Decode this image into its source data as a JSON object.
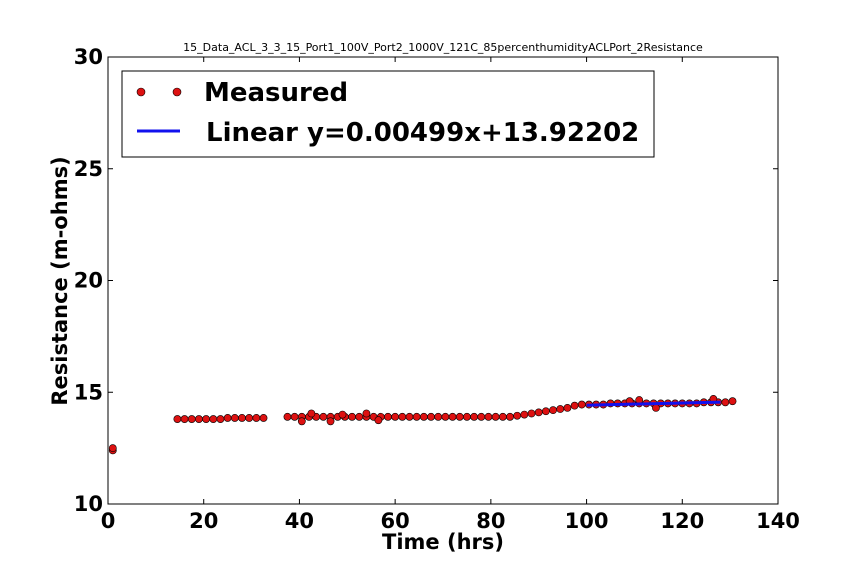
{
  "chart_data": {
    "type": "scatter",
    "title": "15_Data_ACL_3_3_15_Port1_100V_Port2_1000V_121C_85percenthumidityACLPort_2Resistance",
    "xlabel": "Time (hrs)",
    "ylabel": "Resistance (m-ohms)",
    "xlim": [
      0,
      140
    ],
    "ylim": [
      10,
      30
    ],
    "xticks": [
      "0",
      "20",
      "40",
      "60",
      "80",
      "100",
      "120",
      "140"
    ],
    "yticks": [
      "10",
      "15",
      "20",
      "25",
      "30"
    ],
    "legend_position": "top-left",
    "grid": false,
    "series": [
      {
        "name": "Measured",
        "kind": "points",
        "color": "#dd1111",
        "x": [
          1,
          1,
          14.5,
          16,
          17.5,
          19,
          20.5,
          22,
          23.5,
          25,
          26.5,
          28,
          29.5,
          31,
          32.5,
          37.5,
          39,
          40.5,
          42,
          43.5,
          45,
          46.5,
          48,
          49.5,
          51,
          52.5,
          54,
          55.5,
          57,
          58.5,
          60,
          61.5,
          63,
          64.5,
          66,
          67.5,
          69,
          70.5,
          72,
          73.5,
          75,
          76.5,
          78,
          79.5,
          81,
          82.5,
          84,
          85.5,
          87,
          88.5,
          90,
          91.5,
          93,
          94.5,
          96,
          97.5,
          99,
          100.5,
          102,
          103.5,
          105,
          106.5,
          108,
          109.5,
          111,
          112.5,
          114,
          115.5,
          117,
          118.5,
          120,
          121.5,
          123,
          124.5,
          126,
          127.5,
          129,
          130.5,
          40.5,
          42.5,
          46.5,
          49,
          54,
          56.5,
          109,
          111,
          114.5,
          126.5
        ],
        "y": [
          12.4,
          12.5,
          13.8,
          13.8,
          13.8,
          13.8,
          13.8,
          13.8,
          13.8,
          13.85,
          13.85,
          13.85,
          13.85,
          13.85,
          13.85,
          13.9,
          13.9,
          13.9,
          13.9,
          13.9,
          13.9,
          13.9,
          13.9,
          13.9,
          13.9,
          13.9,
          13.9,
          13.9,
          13.9,
          13.9,
          13.9,
          13.9,
          13.9,
          13.9,
          13.9,
          13.9,
          13.9,
          13.9,
          13.9,
          13.9,
          13.9,
          13.9,
          13.9,
          13.9,
          13.9,
          13.9,
          13.9,
          13.95,
          14.0,
          14.05,
          14.1,
          14.15,
          14.2,
          14.25,
          14.3,
          14.4,
          14.45,
          14.45,
          14.45,
          14.45,
          14.5,
          14.5,
          14.5,
          14.5,
          14.5,
          14.5,
          14.5,
          14.5,
          14.5,
          14.5,
          14.5,
          14.5,
          14.5,
          14.55,
          14.55,
          14.55,
          14.55,
          14.6,
          13.7,
          14.05,
          13.7,
          14.0,
          14.05,
          13.75,
          14.6,
          14.65,
          14.3,
          14.7
        ]
      },
      {
        "name": "Linear y=0.00499x+13.92202",
        "kind": "line",
        "color": "#1111ee",
        "x": [
          100,
          128
        ],
        "y": [
          14.42,
          14.56
        ]
      }
    ]
  }
}
